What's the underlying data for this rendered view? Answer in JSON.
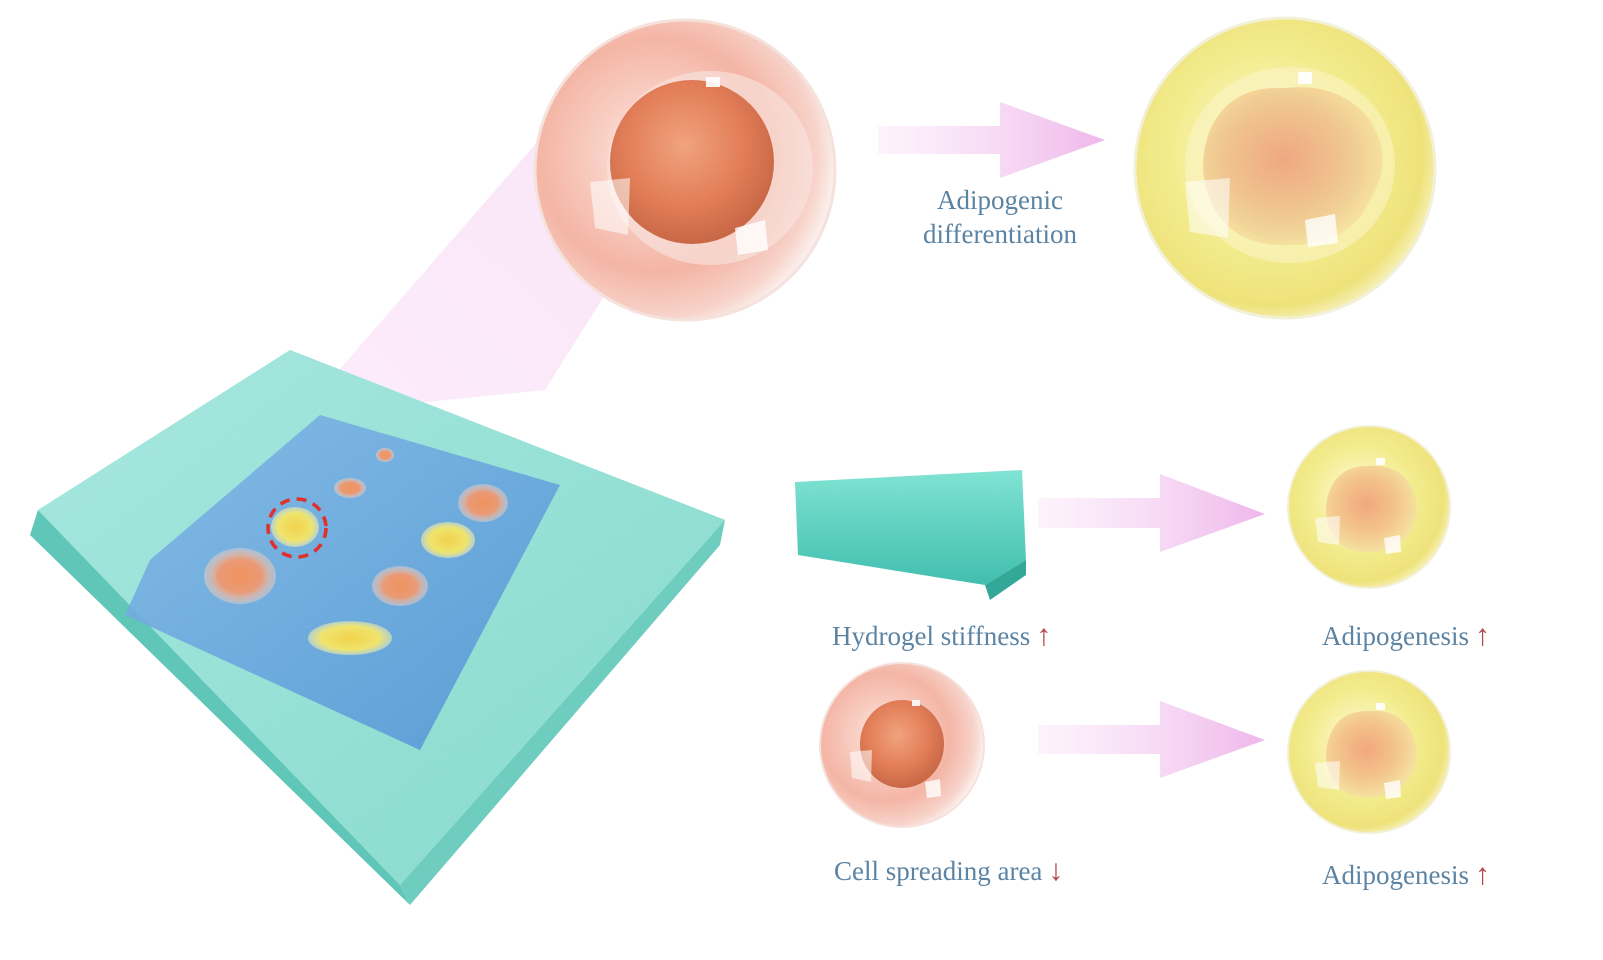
{
  "labels": {
    "adipogenic_line1": "Adipogenic",
    "adipogenic_line2": "differentiation",
    "hydrogel_stiffness": "Hydrogel stiffness",
    "adipogenesis_1": "Adipogenesis",
    "cell_spreading_area": "Cell spreading area",
    "adipogenesis_2": "Adipogenesis"
  },
  "indicators": {
    "up": "↑",
    "down": "↓"
  },
  "colors": {
    "label_text": "#5b83a3",
    "indicator_arrow": "#b5474a",
    "hydrogel": "#67d9c8",
    "arrow_pink": "#f2c2ee",
    "stem_cell": "#f0a792",
    "adipocyte": "#f1ea8c",
    "highlight_circle": "#e0302c"
  }
}
